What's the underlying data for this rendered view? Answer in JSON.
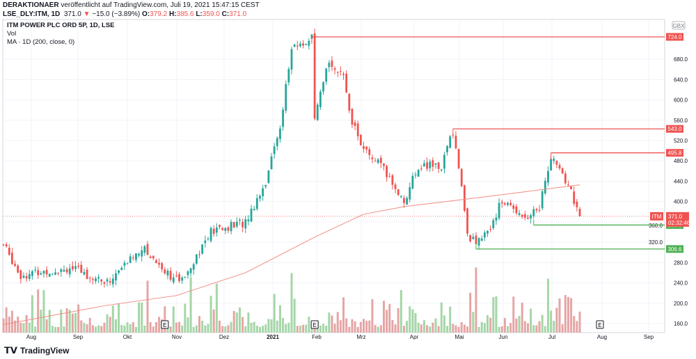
{
  "header": {
    "author": "DERAKTIONAER",
    "published": "veröffentlicht auf TradingView.com, Juli 19, 2021 15:47:15 CEST",
    "symbol": "LSE_DLY:ITM, 1D",
    "last": "371.0",
    "arrow": "▼",
    "change": "−15.0 (−3.89%)",
    "o_label": "O:",
    "o": "379.2",
    "h_label": "H:",
    "h": "385.6",
    "l_label": "L:",
    "l": "359.0",
    "c_label": "C:",
    "c": "371.0"
  },
  "legend": {
    "title": "ITM POWER PLC ORD 5P, 1D, LSE",
    "vol": "Vol",
    "ma": "MA · 1D (200, close, 0)"
  },
  "currency": "GBX",
  "footer": {
    "brand": "TradingView"
  },
  "colors": {
    "up": "#26a69a",
    "down": "#ef5350",
    "ma": "#f28b82",
    "volUp": "#a5d6a7",
    "volDown": "#e6a5a5",
    "level": "#ef5350",
    "support": "#4caf50"
  },
  "chart_data": {
    "type": "candlestick",
    "yticks": [
      160,
      200,
      240,
      280,
      320,
      360,
      400,
      440,
      480,
      520,
      560,
      600,
      640,
      680
    ],
    "ylim": [
      160,
      724
    ],
    "xticks": [
      "Aug",
      "Sep",
      "Okt",
      "Nov",
      "Dez",
      "2021",
      "Feb",
      "Mrz",
      "Apr",
      "Mai",
      "Jun",
      "Jul",
      "Aug",
      "Sep"
    ],
    "price_path": [
      [
        0,
        315
      ],
      [
        6,
        255
      ],
      [
        23,
        270
      ],
      [
        36,
        240
      ],
      [
        48,
        310
      ],
      [
        57,
        260
      ],
      [
        61,
        240
      ],
      [
        72,
        340
      ],
      [
        84,
        360
      ],
      [
        91,
        440
      ],
      [
        96,
        550
      ],
      [
        100,
        700
      ],
      [
        107,
        720
      ],
      [
        108,
        560
      ],
      [
        113,
        680
      ],
      [
        118,
        640
      ],
      [
        121,
        560
      ],
      [
        125,
        500
      ],
      [
        131,
        470
      ],
      [
        139,
        400
      ],
      [
        144,
        470
      ],
      [
        152,
        470
      ],
      [
        156,
        540
      ],
      [
        159,
        430
      ],
      [
        161,
        330
      ],
      [
        166,
        320
      ],
      [
        173,
        400
      ],
      [
        182,
        370
      ],
      [
        186,
        390
      ],
      [
        190,
        490
      ],
      [
        193,
        460
      ],
      [
        197,
        420
      ],
      [
        200,
        371
      ]
    ],
    "ma200": [
      [
        0,
        158
      ],
      [
        35,
        195
      ],
      [
        60,
        215
      ],
      [
        84,
        260
      ],
      [
        108,
        330
      ],
      [
        125,
        375
      ],
      [
        139,
        390
      ],
      [
        161,
        405
      ],
      [
        182,
        420
      ],
      [
        200,
        433
      ]
    ],
    "levels": [
      {
        "label": "724.0",
        "value": 724,
        "type": "resistance",
        "from": 107
      },
      {
        "label": "543.0",
        "value": 543,
        "type": "resistance",
        "from": 156
      },
      {
        "label": "495.8",
        "value": 495.8,
        "type": "resistance",
        "from": 190
      },
      {
        "label": "353.8",
        "value": 353.8,
        "type": "support",
        "from": 184
      },
      {
        "label": "306.6",
        "value": 306.6,
        "type": "support",
        "from": 164
      }
    ],
    "last_price": {
      "symbol": "ITM",
      "value": "371.0",
      "countdown": "02:32:46"
    },
    "earnings_markers": [
      {
        "label": "E",
        "at": 56
      },
      {
        "label": "E",
        "at": 108
      },
      {
        "label": "E",
        "at": 207
      }
    ]
  }
}
